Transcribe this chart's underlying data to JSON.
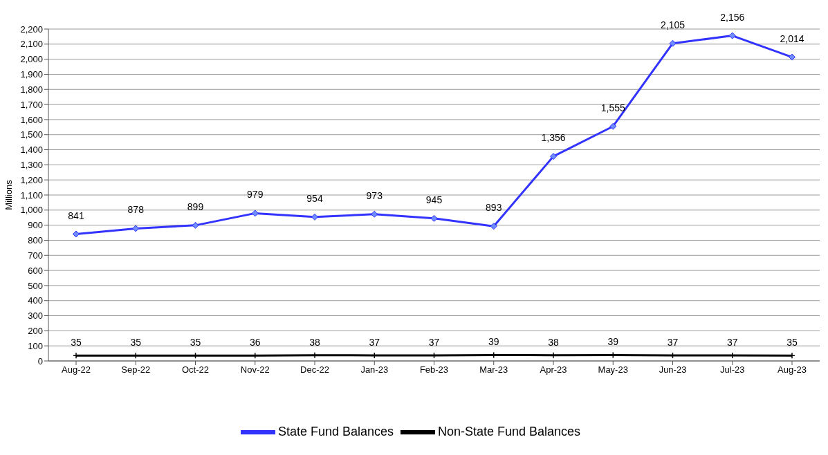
{
  "chart_data": {
    "type": "line",
    "ylabel": "Millions",
    "categories": [
      "Aug-22",
      "Sep-22",
      "Oct-22",
      "Nov-22",
      "Dec-22",
      "Jan-23",
      "Feb-23",
      "Mar-23",
      "Apr-23",
      "May-23",
      "Jun-23",
      "Jul-23",
      "Aug-23"
    ],
    "series": [
      {
        "name": "State Fund Balances",
        "color": "#3333ff",
        "marker": "diamond",
        "values": [
          841,
          878,
          899,
          979,
          954,
          973,
          945,
          893,
          1356,
          1555,
          2105,
          2156,
          2014
        ],
        "value_labels": [
          "841",
          "878",
          "899",
          "979",
          "954",
          "973",
          "945",
          "893",
          "1,356",
          "1,555",
          "2,105",
          "2,156",
          "2,014"
        ]
      },
      {
        "name": "Non-State Fund Balances",
        "color": "#000000",
        "marker": "cross",
        "values": [
          35,
          35,
          35,
          36,
          38,
          37,
          37,
          39,
          38,
          39,
          37,
          37,
          35
        ],
        "value_labels": [
          "35",
          "35",
          "35",
          "36",
          "38",
          "37",
          "37",
          "39",
          "38",
          "39",
          "37",
          "37",
          "35"
        ]
      }
    ],
    "ylim": [
      0,
      2200
    ],
    "yticks": [
      0,
      100,
      200,
      300,
      400,
      500,
      600,
      700,
      800,
      900,
      {
        "value": 1000,
        "label": "1,000"
      },
      {
        "value": 1100,
        "label": "1,100"
      },
      {
        "value": 1200,
        "label": "1,200"
      },
      {
        "value": 1300,
        "label": "1,300"
      },
      {
        "value": 1400,
        "label": "1,400"
      },
      {
        "value": 1500,
        "label": "1,500"
      },
      {
        "value": 1600,
        "label": "1,600"
      },
      {
        "value": 1700,
        "label": "1,700"
      },
      {
        "value": 1800,
        "label": "1,800"
      },
      {
        "value": 1900,
        "label": "1,900"
      },
      {
        "value": 2000,
        "label": "2,000"
      },
      {
        "value": 2100,
        "label": "2,100"
      },
      {
        "value": 2200,
        "label": "2,200"
      }
    ],
    "grid": "y",
    "legend": "bottom",
    "line_style": "solid"
  }
}
